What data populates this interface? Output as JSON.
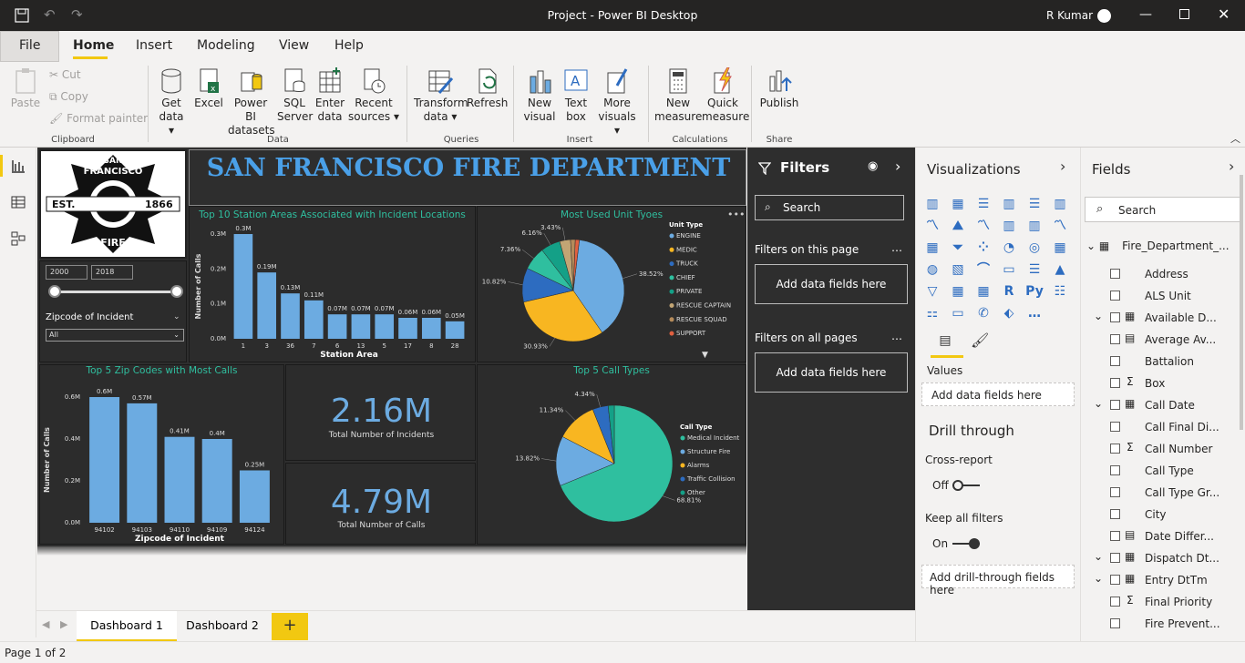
{
  "app": {
    "title": "Project - Power BI Desktop",
    "user": "R Kumar"
  },
  "ribbon": {
    "tabs": [
      "File",
      "Home",
      "Insert",
      "Modeling",
      "View",
      "Help"
    ],
    "clipboard": {
      "paste": "Paste",
      "cut": "Cut",
      "copy": "Copy",
      "format": "Format painter",
      "group": "Clipboard"
    },
    "data": {
      "get": "Get",
      "get2": "data",
      "excel": "Excel",
      "pbi": "Power BI",
      "pbi2": "datasets",
      "sql": "SQL",
      "sql2": "Server",
      "enter": "Enter",
      "enter2": "data",
      "recent": "Recent",
      "recent2": "sources",
      "group": "Data"
    },
    "queries": {
      "transform": "Transform",
      "transform2": "data",
      "refresh": "Refresh",
      "group": "Queries"
    },
    "insert": {
      "newvisual": "New",
      "newvisual2": "visual",
      "textbox": "Text",
      "textbox2": "box",
      "more": "More",
      "more2": "visuals",
      "group": "Insert"
    },
    "calc": {
      "newmeasure": "New",
      "newmeasure2": "measure",
      "quick": "Quick",
      "quick2": "measure",
      "group": "Calculations"
    },
    "share": {
      "publish": "Publish",
      "group": "Share"
    }
  },
  "report": {
    "header": "SAN FRANCISCO FIRE DEPARTMENT",
    "logo": {
      "top": "SAN",
      "top2": "FRANCISCO",
      "est": "EST.",
      "year": "1866",
      "bottom": "FIRE"
    },
    "slider": {
      "from": "2000",
      "to": "2018"
    },
    "zip_slicer": {
      "label": "Zipcode of Incident",
      "value": "All"
    },
    "kpi1": {
      "value": "2.16M",
      "label": "Total Number of Incidents"
    },
    "kpi2": {
      "value": "4.79M",
      "label": "Total Number of Calls"
    }
  },
  "chart_data": [
    {
      "type": "bar",
      "title": "Top 10 Station Areas Associated with Incident Locations",
      "xlabel": "Station Area",
      "ylabel": "Number of Calls",
      "categories": [
        "1",
        "3",
        "36",
        "7",
        "6",
        "13",
        "5",
        "17",
        "8",
        "28"
      ],
      "values": [
        0.3,
        0.19,
        0.13,
        0.11,
        0.07,
        0.07,
        0.07,
        0.06,
        0.06,
        0.05
      ],
      "data_labels": [
        "0.3M",
        "0.19M",
        "0.13M",
        "0.11M",
        "0.07M",
        "0.07M",
        "0.07M",
        "0.06M",
        "0.06M",
        "0.05M"
      ],
      "yticks": [
        "0.0M",
        "0.1M",
        "0.2M",
        "0.3M"
      ],
      "ylim": [
        0,
        0.3
      ],
      "color": "#6cabe1"
    },
    {
      "type": "pie",
      "title": "Most Used Unit Tyoes",
      "legend_title": "Unit Type",
      "legend": [
        "ENGINE",
        "MEDIC",
        "TRUCK",
        "CHIEF",
        "PRIVATE",
        "RESCUE CAPTAIN",
        "RESCUE SQUAD",
        "SUPPORT"
      ],
      "colors": [
        "#6cabe1",
        "#f8b621",
        "#2d6cc0",
        "#2fbf9f",
        "#14a087",
        "#c2a574",
        "#b58b5a",
        "#e06040"
      ],
      "values": [
        38.52,
        30.93,
        10.82,
        7.36,
        6.16,
        3.43,
        1.5,
        1.28
      ],
      "labels": [
        "38.52%",
        "30.93%",
        "10.82%",
        "7.36%",
        "6.16%",
        "3.43%",
        "",
        ""
      ]
    },
    {
      "type": "bar",
      "title": "Top 5 Zip Codes with Most Calls",
      "xlabel": "Zipcode of Incident",
      "ylabel": "Number of Calls",
      "categories": [
        "94102",
        "94103",
        "94110",
        "94109",
        "94124"
      ],
      "values": [
        0.6,
        0.57,
        0.41,
        0.4,
        0.25
      ],
      "data_labels": [
        "0.6M",
        "0.57M",
        "0.41M",
        "0.4M",
        "0.25M"
      ],
      "yticks": [
        "0.0M",
        "0.2M",
        "0.4M",
        "0.6M"
      ],
      "ylim": [
        0,
        0.6
      ],
      "color": "#6cabe1"
    },
    {
      "type": "pie",
      "title": "Top 5 Call Types",
      "legend_title": "Call Type",
      "legend": [
        "Medical Incident",
        "Structure Fire",
        "Alarms",
        "Traffic Collision",
        "Other"
      ],
      "colors": [
        "#2fbf9f",
        "#6cabe1",
        "#f8b621",
        "#2d6cc0",
        "#14a087"
      ],
      "values": [
        68.81,
        13.82,
        11.34,
        4.34,
        1.69
      ],
      "labels": [
        "68.81%",
        "13.82%",
        "11.34%",
        "4.34%",
        ""
      ]
    }
  ],
  "filters": {
    "title": "Filters",
    "search": "Search",
    "on_page": "Filters on this page",
    "on_all": "Filters on all pages",
    "add": "Add data fields here"
  },
  "viz": {
    "title": "Visualizations",
    "values": "Values",
    "add_values": "Add data fields here",
    "drill": "Drill through",
    "cross": "Cross-report",
    "off": "Off",
    "keep": "Keep all filters",
    "on": "On",
    "add_drill": "Add drill-through fields here"
  },
  "fields": {
    "title": "Fields",
    "search": "Search",
    "table": "Fire_Department_...",
    "items": [
      {
        "name": "Address",
        "sym": ""
      },
      {
        "name": "ALS Unit",
        "sym": ""
      },
      {
        "name": "Available D...",
        "sym": "cal",
        "exp": true
      },
      {
        "name": "Average Av...",
        "sym": "tbl"
      },
      {
        "name": "Battalion",
        "sym": ""
      },
      {
        "name": "Box",
        "sym": "Σ"
      },
      {
        "name": "Call Date",
        "sym": "cal",
        "exp": true
      },
      {
        "name": "Call Final Di...",
        "sym": ""
      },
      {
        "name": "Call Number",
        "sym": "Σ"
      },
      {
        "name": "Call Type",
        "sym": ""
      },
      {
        "name": "Call Type Gr...",
        "sym": ""
      },
      {
        "name": "City",
        "sym": ""
      },
      {
        "name": "Date Differ...",
        "sym": "tbl"
      },
      {
        "name": "Dispatch Dt...",
        "sym": "cal",
        "exp": true
      },
      {
        "name": "Entry DtTm",
        "sym": "cal",
        "exp": true
      },
      {
        "name": "Final Priority",
        "sym": "Σ"
      },
      {
        "name": "Fire Prevent...",
        "sym": ""
      }
    ]
  },
  "pages": {
    "tabs": [
      "Dashboard 1",
      "Dashboard 2"
    ],
    "add": "+",
    "status": "Page 1 of 2"
  }
}
